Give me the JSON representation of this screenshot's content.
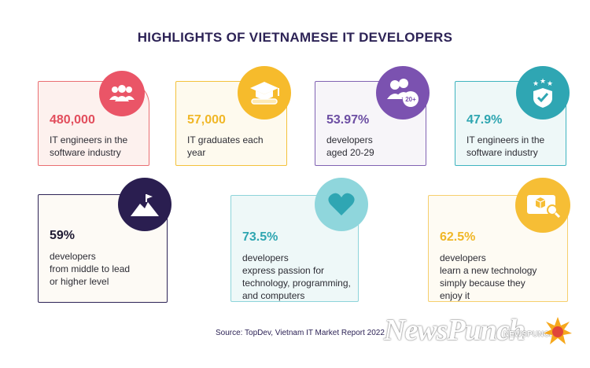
{
  "title": "HIGHLIGHTS OF VIETNAMESE IT DEVELOPERS",
  "cards": [
    {
      "value": "480,000",
      "desc": "IT engineers in the\nsoftware industry",
      "icon": "people-group-icon",
      "color": "#ea5567"
    },
    {
      "value": "57,000",
      "desc": "IT graduates each\nyear",
      "icon": "graduation-cap-diploma-icon",
      "color": "#f6bb2c"
    },
    {
      "value": "53.97%",
      "desc": "developers\naged 20-29",
      "icon": "people-20-plus-icon",
      "color": "#7b52b0",
      "badge": "20+"
    },
    {
      "value": "47.9%",
      "desc": "IT engineers in the\nsoftware industry",
      "icon": "shield-stars-icon",
      "color": "#2fa6b3"
    },
    {
      "value": "59%",
      "desc": "developers\nfrom middle to lead\nor higher level",
      "icon": "mountain-flag-icon",
      "color": "#2a1e50"
    },
    {
      "value": "73.5%",
      "desc": "developers\nexpress passion for\ntechnology, programming,\nand computers",
      "icon": "heart-icon",
      "color": "#8fd6dc"
    },
    {
      "value": "62.5%",
      "desc": "developers\nlearn a new technology\nsimply because they\nenjoy it",
      "icon": "box-search-icon",
      "color": "#f6be35"
    }
  ],
  "source": "Source: TopDev, Vietnam IT Market Report 2022",
  "watermark": "NewsPunch",
  "watermark_small": "NEWSPUNCH"
}
